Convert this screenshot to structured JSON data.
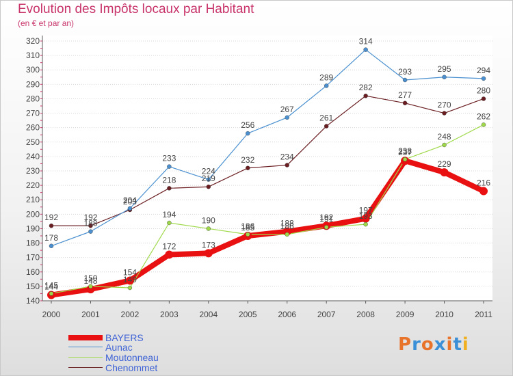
{
  "header": {
    "title": "Evolution des Impôts locaux par Habitant",
    "subtitle": "(en € et par an)"
  },
  "colors": {
    "title": "#c8336a",
    "axis": "#5a5a5a",
    "grid": "#d6d6d6"
  },
  "logo": {
    "text": "Proxiti",
    "letters": [
      "P",
      "r",
      "o",
      "x",
      "i",
      "t",
      "i"
    ],
    "colors": [
      "#e8742c",
      "#3a8fd6",
      "#e8742c",
      "#3a8fd6",
      "#e8742c",
      "#3a8fd6",
      "#f0b020"
    ]
  },
  "chart_data": {
    "type": "line",
    "title": "Evolution des Impôts locaux par Habitant",
    "subtitle": "(en € et par an)",
    "xlabel": "",
    "ylabel": "",
    "x": [
      "2000",
      "2001",
      "2002",
      "2003",
      "2004",
      "2005",
      "2006",
      "2007",
      "2008",
      "2009",
      "2010",
      "2011"
    ],
    "ylim": [
      140,
      320
    ],
    "yticks": [
      140,
      150,
      160,
      170,
      180,
      190,
      200,
      210,
      220,
      230,
      240,
      250,
      260,
      270,
      280,
      290,
      300,
      310,
      320
    ],
    "grid": "horizontal dotted",
    "legend_position": "bottom-left",
    "series": [
      {
        "name": "Chenommet",
        "color": "#6b1e22",
        "values": [
          192,
          192,
          203,
          218,
          219,
          232,
          234,
          261,
          282,
          277,
          270,
          280
        ],
        "style": "thin"
      },
      {
        "name": "Aunac",
        "color": "#4a90d0",
        "values": [
          178,
          188,
          204,
          233,
          224,
          256,
          267,
          289,
          314,
          293,
          295,
          294
        ],
        "style": "thin"
      },
      {
        "name": "BAYERS",
        "color": "#e81010",
        "values": [
          144,
          148,
          154,
          172,
          173,
          185,
          188,
          192,
          197,
          237,
          229,
          216
        ],
        "style": "thick"
      },
      {
        "name": "Moutonneau",
        "color": "#9fd94a",
        "values": [
          145,
          150,
          149,
          194,
          190,
          186,
          186,
          191,
          193,
          238,
          248,
          262
        ],
        "style": "thin"
      }
    ],
    "legend": [
      "BAYERS",
      "Aunac",
      "Moutonneau",
      "Chenommet"
    ]
  }
}
